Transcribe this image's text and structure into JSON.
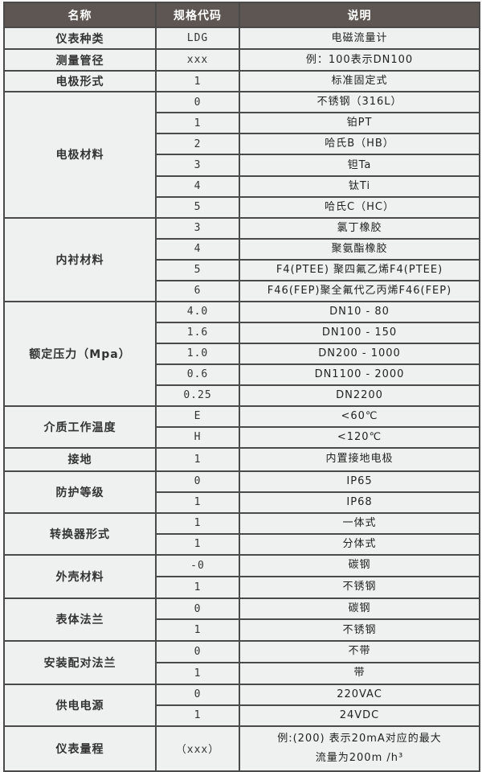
{
  "header": {
    "name": "名称",
    "code": "规格代码",
    "desc": "说明"
  },
  "groups": [
    {
      "name": "仪表种类",
      "items": [
        {
          "code": "LDG",
          "desc": [
            "电磁流量计"
          ]
        }
      ]
    },
    {
      "name": "测量管径",
      "items": [
        {
          "code": "xxx",
          "desc": [
            "例：100表示DN100"
          ]
        }
      ]
    },
    {
      "name": "电极形式",
      "items": [
        {
          "code": "1",
          "desc": [
            "标准固定式"
          ]
        }
      ]
    },
    {
      "name": "电极材料",
      "items": [
        {
          "code": "0",
          "desc": [
            "不锈钢（316L）"
          ]
        },
        {
          "code": "1",
          "desc": [
            "铂PT"
          ]
        },
        {
          "code": "2",
          "desc": [
            "哈氏B（HB）"
          ]
        },
        {
          "code": "3",
          "desc": [
            "钽Ta"
          ]
        },
        {
          "code": "4",
          "desc": [
            "钛Ti"
          ]
        },
        {
          "code": "5",
          "desc": [
            "哈氏C（HC）"
          ]
        }
      ]
    },
    {
      "name": "内衬材料",
      "items": [
        {
          "code": "3",
          "desc": [
            "氯丁橡胶"
          ]
        },
        {
          "code": "4",
          "desc": [
            "聚氨酯橡胶"
          ]
        },
        {
          "code": "5",
          "desc": [
            "F4(PTEE) 聚四氟乙烯F4(PTEE)"
          ]
        },
        {
          "code": "6",
          "desc": [
            "F46(FEP)聚全氟代乙丙烯F46(FEP)"
          ]
        }
      ]
    },
    {
      "name": "额定压力（Mpa）",
      "items": [
        {
          "code": "4.0",
          "desc": [
            "DN10 - 80"
          ]
        },
        {
          "code": "1.6",
          "desc": [
            "DN100 - 150"
          ]
        },
        {
          "code": "1.0",
          "desc": [
            "DN200 - 1000"
          ]
        },
        {
          "code": "0.6",
          "desc": [
            "DN1100 - 2000"
          ]
        },
        {
          "code": "0.25",
          "desc": [
            "DN2200"
          ]
        }
      ]
    },
    {
      "name": "介质工作温度",
      "items": [
        {
          "code": "E",
          "desc": [
            "<60℃"
          ]
        },
        {
          "code": "H",
          "desc": [
            "<120℃"
          ]
        }
      ]
    },
    {
      "name": "接地",
      "items": [
        {
          "code": "1",
          "desc": [
            "内置接地电极"
          ]
        }
      ]
    },
    {
      "name": "防护等级",
      "items": [
        {
          "code": "0",
          "desc": [
            "IP65"
          ]
        },
        {
          "code": "1",
          "desc": [
            "IP68"
          ]
        }
      ]
    },
    {
      "name": "转换器形式",
      "items": [
        {
          "code": "1",
          "desc": [
            "一体式"
          ]
        },
        {
          "code": "1",
          "desc": [
            "分体式"
          ]
        }
      ]
    },
    {
      "name": "外壳材料",
      "items": [
        {
          "code": "-0",
          "desc": [
            "碳钢"
          ]
        },
        {
          "code": "1",
          "desc": [
            "不锈钢"
          ]
        }
      ]
    },
    {
      "name": "表体法兰",
      "items": [
        {
          "code": "0",
          "desc": [
            "碳钢"
          ]
        },
        {
          "code": "1",
          "desc": [
            "不锈钢"
          ]
        }
      ]
    },
    {
      "name": "安装配对法兰",
      "items": [
        {
          "code": "0",
          "desc": [
            "不带"
          ]
        },
        {
          "code": "1",
          "desc": [
            "带"
          ]
        }
      ]
    },
    {
      "name": "供电电源",
      "items": [
        {
          "code": "0",
          "desc": [
            "220VAC"
          ]
        },
        {
          "code": "1",
          "desc": [
            "24VDC"
          ]
        }
      ]
    },
    {
      "name": "仪表量程",
      "items": [
        {
          "code": "（xxx）",
          "desc": [
            "例:(200) 表示20mA对应的最大",
            "流量为200m /h³"
          ]
        }
      ]
    }
  ]
}
